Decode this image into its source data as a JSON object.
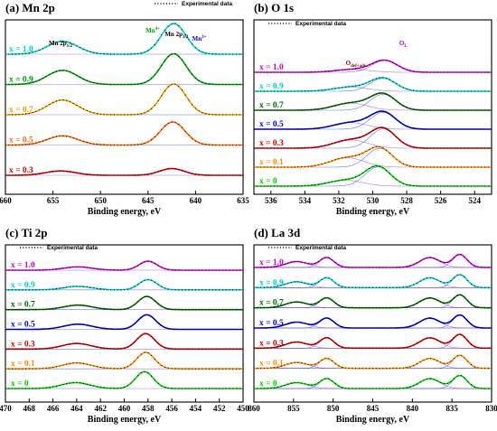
{
  "chart_data": [
    {
      "id": "mn2p",
      "type": "line",
      "title": "(a) Mn 2p",
      "legend": "Experimental data",
      "legend_position": "top-right",
      "xlabel": "Binding energy, eV",
      "xlim": [
        660,
        635
      ],
      "xticks": [
        660,
        655,
        650,
        645,
        640,
        635
      ],
      "annotations": [
        {
          "text": "Mn 2p",
          "sub": "1/2",
          "x": 654.2,
          "color": "#000000"
        },
        {
          "text": "Mn 2p",
          "sub": "3/2",
          "x": 642.0,
          "color": "#000000"
        },
        {
          "text": "Mn",
          "sup": "4+",
          "x": 644.5,
          "color": "#00a000"
        },
        {
          "text": "Mn",
          "sup": "3+",
          "x": 639.6,
          "color": "#0000cc"
        }
      ],
      "series": [
        {
          "name": "x = 1.0",
          "color": "#00cccc",
          "peaks": [
            {
              "c": 654.0,
              "w": 1.6,
              "a": 0.42
            },
            {
              "c": 642.3,
              "w": 1.3,
              "a": 1.0
            }
          ]
        },
        {
          "name": "x = 0.9",
          "color": "#00a000",
          "peaks": [
            {
              "c": 654.0,
              "w": 1.6,
              "a": 0.46
            },
            {
              "c": 642.3,
              "w": 1.3,
              "a": 1.0
            }
          ]
        },
        {
          "name": "x = 0.7",
          "color": "#e0a000",
          "peaks": [
            {
              "c": 654.0,
              "w": 1.6,
              "a": 0.48
            },
            {
              "c": 642.3,
              "w": 1.3,
              "a": 1.0
            }
          ]
        },
        {
          "name": "x = 0.5",
          "color": "#ff6600",
          "peaks": [
            {
              "c": 654.0,
              "w": 1.6,
              "a": 0.3
            },
            {
              "c": 642.4,
              "w": 1.3,
              "a": 0.75
            }
          ]
        },
        {
          "name": "x = 0.3",
          "color": "#d00000",
          "peaks": [
            {
              "c": 654.2,
              "w": 1.6,
              "a": 0.14
            },
            {
              "c": 642.5,
              "w": 1.3,
              "a": 0.22
            }
          ]
        }
      ]
    },
    {
      "id": "o1s",
      "type": "line",
      "title": "(b) O 1s",
      "legend": "Experimental data",
      "legend_position": "top-left",
      "xlabel": "Binding energy, eV",
      "xlim": [
        537,
        523
      ],
      "xticks": [
        536,
        534,
        532,
        530,
        528,
        526,
        524
      ],
      "annotations": [
        {
          "text": "O",
          "sub": "def+ads",
          "x": 531.0,
          "color": "#800000"
        },
        {
          "text": "O",
          "sub": "L",
          "x": 528.2,
          "color": "#9900cc"
        }
      ],
      "series": [
        {
          "name": "x = 1.0",
          "color": "#cc00cc",
          "peaks": [
            {
              "c": 529.3,
              "w": 0.75,
              "a": 0.5
            },
            {
              "c": 531.2,
              "w": 1.0,
              "a": 0.12
            }
          ]
        },
        {
          "name": "x = 0.9",
          "color": "#00cccc",
          "peaks": [
            {
              "c": 529.4,
              "w": 0.75,
              "a": 0.55
            },
            {
              "c": 531.3,
              "w": 1.0,
              "a": 0.18
            }
          ]
        },
        {
          "name": "x = 0.7",
          "color": "#006600",
          "peaks": [
            {
              "c": 529.4,
              "w": 0.75,
              "a": 0.68
            },
            {
              "c": 531.3,
              "w": 1.0,
              "a": 0.3
            }
          ]
        },
        {
          "name": "x = 0.5",
          "color": "#0000cc",
          "peaks": [
            {
              "c": 529.4,
              "w": 0.75,
              "a": 0.72
            },
            {
              "c": 531.3,
              "w": 1.0,
              "a": 0.28
            }
          ]
        },
        {
          "name": "x = 0.3",
          "color": "#cc0000",
          "peaks": [
            {
              "c": 529.4,
              "w": 0.75,
              "a": 0.82
            },
            {
              "c": 531.3,
              "w": 1.0,
              "a": 0.35
            }
          ]
        },
        {
          "name": "x = 0.1",
          "color": "#ff8800",
          "peaks": [
            {
              "c": 529.6,
              "w": 0.75,
              "a": 0.8
            },
            {
              "c": 531.5,
              "w": 1.0,
              "a": 0.4
            }
          ]
        },
        {
          "name": "x = 0",
          "color": "#00cc00",
          "peaks": [
            {
              "c": 529.7,
              "w": 0.75,
              "a": 0.82
            },
            {
              "c": 531.6,
              "w": 1.0,
              "a": 0.25
            }
          ]
        }
      ]
    },
    {
      "id": "ti2p",
      "type": "line",
      "title": "(c) Ti 2p",
      "legend": "Experimental data",
      "legend_position": "top-left",
      "xlabel": "Binding energy, eV",
      "xlim": [
        470,
        450
      ],
      "xticks": [
        470,
        468,
        466,
        464,
        462,
        460,
        458,
        456,
        454,
        452,
        450
      ],
      "series": [
        {
          "name": "x = 1.0",
          "color": "#cc00cc",
          "peaks": [
            {
              "c": 458.0,
              "w": 0.75,
              "a": 0.38
            },
            {
              "c": 463.9,
              "w": 1.2,
              "a": 0.14
            }
          ]
        },
        {
          "name": "x = 0.9",
          "color": "#00cccc",
          "peaks": [
            {
              "c": 458.0,
              "w": 0.75,
              "a": 0.44
            },
            {
              "c": 463.9,
              "w": 1.2,
              "a": 0.15
            }
          ]
        },
        {
          "name": "x = 0.7",
          "color": "#006600",
          "peaks": [
            {
              "c": 458.1,
              "w": 0.75,
              "a": 0.56
            },
            {
              "c": 463.9,
              "w": 1.2,
              "a": 0.19
            }
          ]
        },
        {
          "name": "x = 0.5",
          "color": "#0000cc",
          "peaks": [
            {
              "c": 458.1,
              "w": 0.75,
              "a": 0.62
            },
            {
              "c": 463.9,
              "w": 1.2,
              "a": 0.22
            }
          ]
        },
        {
          "name": "x = 0.3",
          "color": "#cc0000",
          "peaks": [
            {
              "c": 458.2,
              "w": 0.75,
              "a": 0.66
            },
            {
              "c": 464.0,
              "w": 1.2,
              "a": 0.24
            }
          ]
        },
        {
          "name": "x = 0.1",
          "color": "#ff8800",
          "peaks": [
            {
              "c": 458.2,
              "w": 0.75,
              "a": 0.7
            },
            {
              "c": 464.0,
              "w": 1.2,
              "a": 0.25
            }
          ]
        },
        {
          "name": "x = 0",
          "color": "#00cc00",
          "peaks": [
            {
              "c": 458.3,
              "w": 0.75,
              "a": 0.72
            },
            {
              "c": 464.1,
              "w": 1.2,
              "a": 0.25
            }
          ]
        }
      ]
    },
    {
      "id": "la3d",
      "type": "line",
      "title": "(d) La 3d",
      "legend": "Experimental data",
      "legend_position": "top-left",
      "xlabel": "Binding energy, eV",
      "xlim": [
        860,
        830
      ],
      "xticks": [
        860,
        855,
        850,
        845,
        840,
        835,
        830
      ],
      "series": [
        {
          "name": "x = 1.0",
          "color": "#cc00cc",
          "peaks": [
            {
              "c": 834.0,
              "w": 0.9,
              "a": 0.55
            },
            {
              "c": 837.8,
              "w": 1.3,
              "a": 0.42
            },
            {
              "c": 850.8,
              "w": 0.9,
              "a": 0.42
            },
            {
              "c": 854.6,
              "w": 1.4,
              "a": 0.25
            }
          ]
        },
        {
          "name": "x = 0.9",
          "color": "#00cccc",
          "peaks": [
            {
              "c": 834.0,
              "w": 0.9,
              "a": 0.55
            },
            {
              "c": 837.8,
              "w": 1.3,
              "a": 0.42
            },
            {
              "c": 850.8,
              "w": 0.9,
              "a": 0.42
            },
            {
              "c": 854.6,
              "w": 1.4,
              "a": 0.25
            }
          ]
        },
        {
          "name": "x = 0.7",
          "color": "#006600",
          "peaks": [
            {
              "c": 834.0,
              "w": 0.9,
              "a": 0.55
            },
            {
              "c": 837.8,
              "w": 1.3,
              "a": 0.42
            },
            {
              "c": 850.8,
              "w": 0.9,
              "a": 0.42
            },
            {
              "c": 854.6,
              "w": 1.4,
              "a": 0.25
            }
          ]
        },
        {
          "name": "x = 0.5",
          "color": "#0000cc",
          "peaks": [
            {
              "c": 834.0,
              "w": 0.9,
              "a": 0.55
            },
            {
              "c": 837.8,
              "w": 1.3,
              "a": 0.42
            },
            {
              "c": 850.8,
              "w": 0.9,
              "a": 0.42
            },
            {
              "c": 854.6,
              "w": 1.4,
              "a": 0.25
            }
          ]
        },
        {
          "name": "x = 0.3",
          "color": "#cc0000",
          "peaks": [
            {
              "c": 834.0,
              "w": 0.9,
              "a": 0.58
            },
            {
              "c": 837.8,
              "w": 1.3,
              "a": 0.44
            },
            {
              "c": 850.8,
              "w": 0.9,
              "a": 0.44
            },
            {
              "c": 854.6,
              "w": 1.4,
              "a": 0.26
            }
          ]
        },
        {
          "name": "x = 0.1",
          "color": "#ff8800",
          "peaks": [
            {
              "c": 834.0,
              "w": 0.9,
              "a": 0.55
            },
            {
              "c": 837.8,
              "w": 1.3,
              "a": 0.42
            },
            {
              "c": 850.8,
              "w": 0.9,
              "a": 0.42
            },
            {
              "c": 854.6,
              "w": 1.4,
              "a": 0.25
            }
          ]
        },
        {
          "name": "x = 0",
          "color": "#00cc00",
          "peaks": [
            {
              "c": 834.0,
              "w": 0.9,
              "a": 0.55
            },
            {
              "c": 837.8,
              "w": 1.3,
              "a": 0.42
            },
            {
              "c": 850.8,
              "w": 0.9,
              "a": 0.42
            },
            {
              "c": 854.6,
              "w": 1.4,
              "a": 0.25
            }
          ]
        }
      ]
    }
  ]
}
